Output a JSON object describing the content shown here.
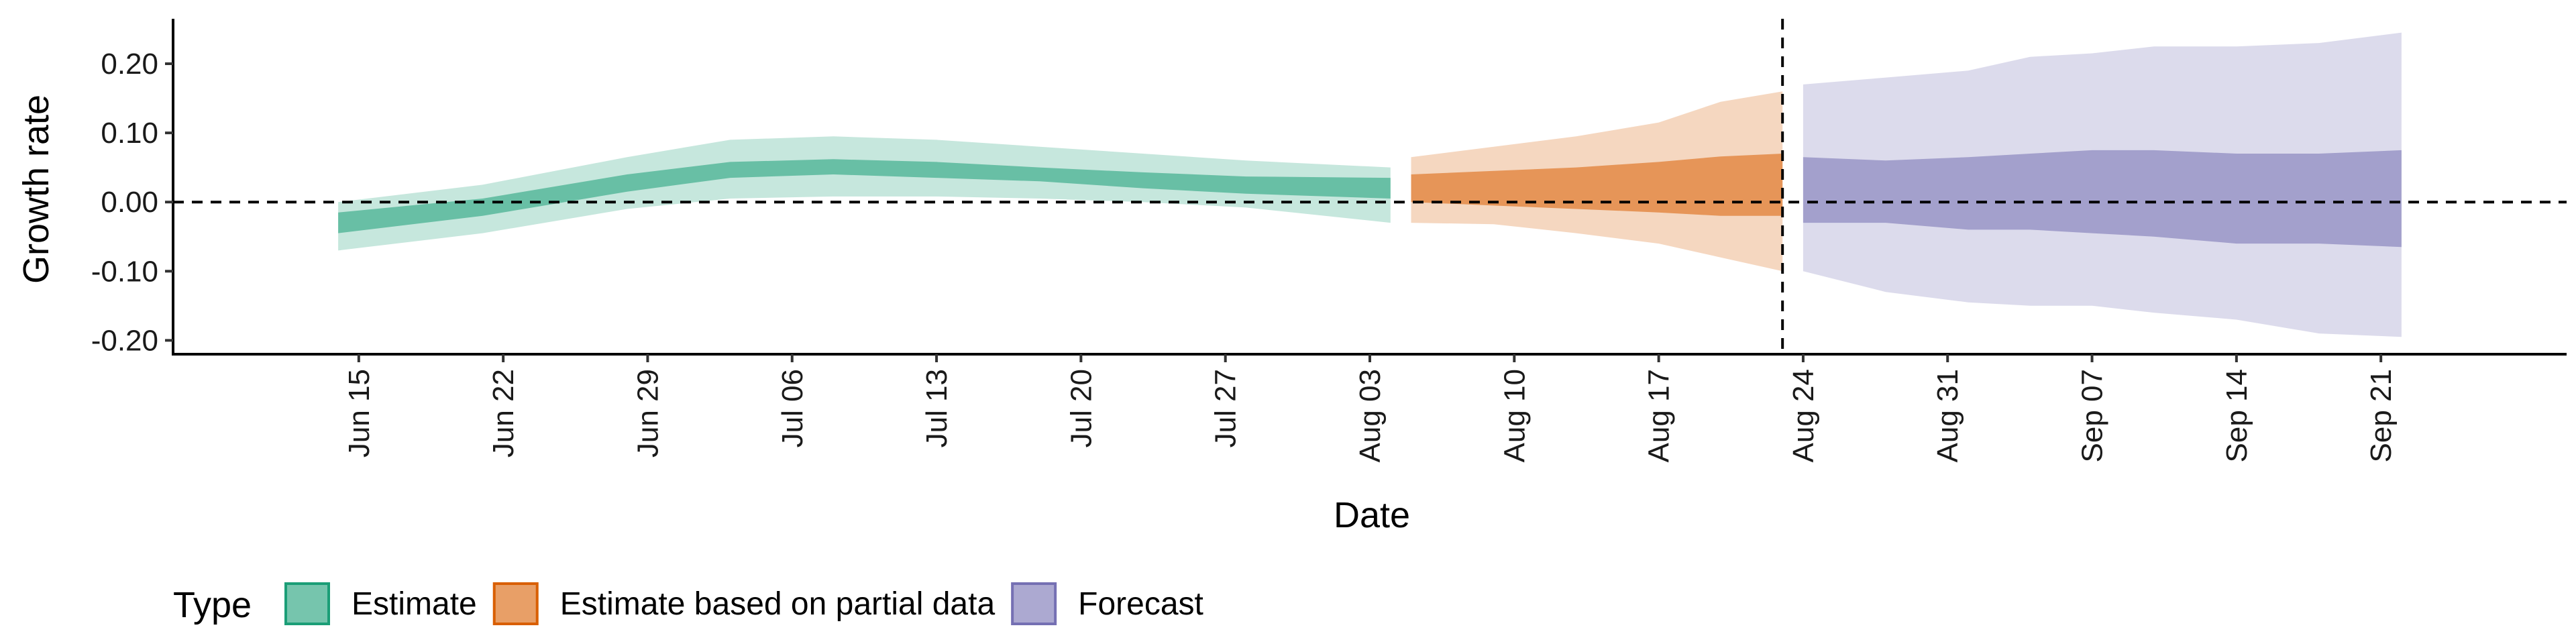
{
  "chart_data": {
    "type": "area",
    "xlabel": "Date",
    "ylabel": "Growth rate",
    "xlim": [
      "2020-06-06",
      "2020-09-30"
    ],
    "ylim": [
      -0.22,
      0.265
    ],
    "x_ticks": [
      "2020-06-15",
      "2020-06-22",
      "2020-06-29",
      "2020-07-06",
      "2020-07-13",
      "2020-07-20",
      "2020-07-27",
      "2020-08-03",
      "2020-08-10",
      "2020-08-17",
      "2020-08-24",
      "2020-08-31",
      "2020-09-07",
      "2020-09-14",
      "2020-09-21"
    ],
    "x_tick_labels": [
      "Jun 15",
      "Jun 22",
      "Jun 29",
      "Jul 06",
      "Jul 13",
      "Jul 20",
      "Jul 27",
      "Aug 03",
      "Aug 10",
      "Aug 17",
      "Aug 24",
      "Aug 31",
      "Sep 07",
      "Sep 14",
      "Sep 21"
    ],
    "y_ticks": [
      0.2,
      0.1,
      0.0,
      -0.1,
      -0.2
    ],
    "y_tick_labels": [
      "0.20",
      "0.10",
      "0.00",
      "-0.10",
      "-0.20"
    ],
    "hline": 0.0,
    "vline": "2020-08-23",
    "grid": false,
    "legend": {
      "title": "Type",
      "placement": "bottom-left",
      "items": [
        "Estimate",
        "Estimate based on partial data",
        "Forecast"
      ]
    },
    "series": [
      {
        "name": "Estimate",
        "color": "#1b9e77",
        "x": [
          "2020-06-14",
          "2020-06-21",
          "2020-06-28",
          "2020-07-03",
          "2020-07-08",
          "2020-07-13",
          "2020-07-18",
          "2020-07-23",
          "2020-07-28",
          "2020-08-04"
        ],
        "outer_lower": [
          -0.07,
          -0.045,
          -0.01,
          0.005,
          0.008,
          0.008,
          0.005,
          0.0,
          -0.008,
          -0.03
        ],
        "outer_upper": [
          0.0,
          0.025,
          0.065,
          0.09,
          0.095,
          0.09,
          0.08,
          0.07,
          0.06,
          0.05
        ],
        "inner_lower": [
          -0.045,
          -0.02,
          0.015,
          0.035,
          0.04,
          0.035,
          0.03,
          0.02,
          0.012,
          0.005
        ],
        "inner_upper": [
          -0.015,
          0.005,
          0.04,
          0.058,
          0.062,
          0.058,
          0.05,
          0.043,
          0.037,
          0.035
        ]
      },
      {
        "name": "Estimate based on partial data",
        "color": "#d95f02",
        "x": [
          "2020-08-05",
          "2020-08-09",
          "2020-08-13",
          "2020-08-17",
          "2020-08-20",
          "2020-08-23"
        ],
        "outer_lower": [
          -0.03,
          -0.032,
          -0.045,
          -0.06,
          -0.08,
          -0.1
        ],
        "outer_upper": [
          0.065,
          0.08,
          0.095,
          0.115,
          0.145,
          0.16
        ],
        "inner_lower": [
          0.0,
          -0.005,
          -0.01,
          -0.015,
          -0.02,
          -0.02
        ],
        "inner_upper": [
          0.04,
          0.045,
          0.05,
          0.058,
          0.066,
          0.07
        ]
      },
      {
        "name": "Forecast",
        "color": "#7570b3",
        "x": [
          "2020-08-24",
          "2020-08-28",
          "2020-09-01",
          "2020-09-04",
          "2020-09-07",
          "2020-09-10",
          "2020-09-14",
          "2020-09-18",
          "2020-09-22"
        ],
        "outer_lower": [
          -0.1,
          -0.13,
          -0.145,
          -0.15,
          -0.15,
          -0.16,
          -0.17,
          -0.19,
          -0.195
        ],
        "outer_upper": [
          0.17,
          0.18,
          0.19,
          0.21,
          0.215,
          0.225,
          0.225,
          0.23,
          0.245
        ],
        "inner_lower": [
          -0.03,
          -0.03,
          -0.04,
          -0.04,
          -0.045,
          -0.05,
          -0.06,
          -0.06,
          -0.065
        ],
        "inner_upper": [
          0.065,
          0.06,
          0.065,
          0.07,
          0.075,
          0.075,
          0.07,
          0.07,
          0.075
        ]
      }
    ]
  }
}
